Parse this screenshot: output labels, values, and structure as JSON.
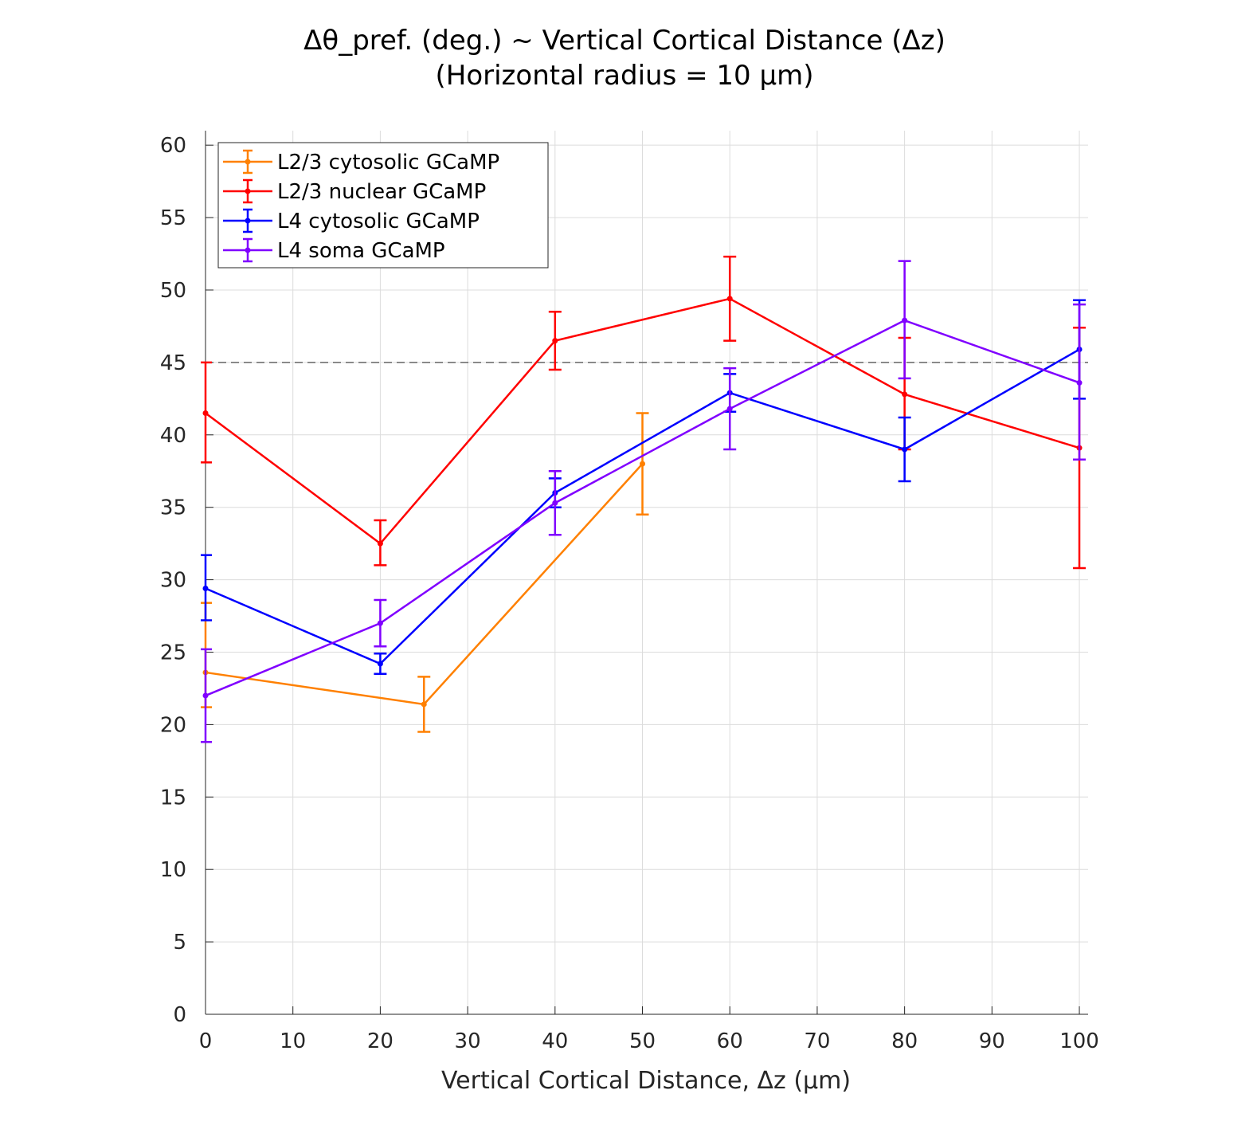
{
  "chart_data": {
    "type": "line",
    "title": "Δθ_pref. (deg.) ~ Vertical Cortical Distance (Δz)",
    "subtitle": "(Horizontal radius = 10 μm)",
    "xlabel": "Vertical Cortical Distance, Δz (μm)",
    "ylabel": "",
    "xlim": [
      0,
      101
    ],
    "ylim": [
      0,
      61
    ],
    "xticks": [
      0,
      10,
      20,
      30,
      40,
      50,
      60,
      70,
      80,
      90,
      100
    ],
    "yticks": [
      0,
      5,
      10,
      15,
      20,
      25,
      30,
      35,
      40,
      45,
      50,
      55,
      60
    ],
    "grid": true,
    "legend_position": "top-left",
    "reference_line": {
      "y": 45,
      "style": "dashed",
      "color": "#666666"
    },
    "series": [
      {
        "name": "L2/3 cytosolic GCaMP",
        "color": "#FF8000",
        "x": [
          0,
          25,
          50
        ],
        "y": [
          23.6,
          21.4,
          38.0
        ],
        "err_low": [
          2.4,
          1.9,
          3.5
        ],
        "err_high": [
          4.8,
          1.9,
          3.5
        ]
      },
      {
        "name": "L2/3 nuclear GCaMP",
        "color": "#FF0000",
        "x": [
          0,
          20,
          40,
          60,
          80,
          100
        ],
        "y": [
          41.5,
          32.5,
          46.5,
          49.4,
          42.8,
          39.1
        ],
        "err_low": [
          3.4,
          1.5,
          2.0,
          2.9,
          3.8,
          8.3
        ],
        "err_high": [
          3.5,
          1.6,
          2.0,
          2.9,
          3.9,
          8.3
        ]
      },
      {
        "name": "L4 cytosolic GCaMP",
        "color": "#0000FF",
        "x": [
          0,
          20,
          40,
          60,
          80,
          100
        ],
        "y": [
          29.4,
          24.2,
          36.0,
          42.9,
          39.0,
          45.9
        ],
        "err_low": [
          2.2,
          0.7,
          1.0,
          1.3,
          2.2,
          3.4
        ],
        "err_high": [
          2.3,
          0.7,
          1.0,
          1.3,
          2.2,
          3.4
        ]
      },
      {
        "name": "L4 soma GCaMP",
        "color": "#8000FF",
        "x": [
          0,
          20,
          40,
          60,
          80,
          100
        ],
        "y": [
          22.0,
          27.0,
          35.3,
          41.8,
          47.9,
          43.6
        ],
        "err_low": [
          3.2,
          1.6,
          2.2,
          2.8,
          4.0,
          5.3
        ],
        "err_high": [
          3.2,
          1.6,
          2.2,
          2.8,
          4.1,
          5.4
        ]
      }
    ]
  }
}
